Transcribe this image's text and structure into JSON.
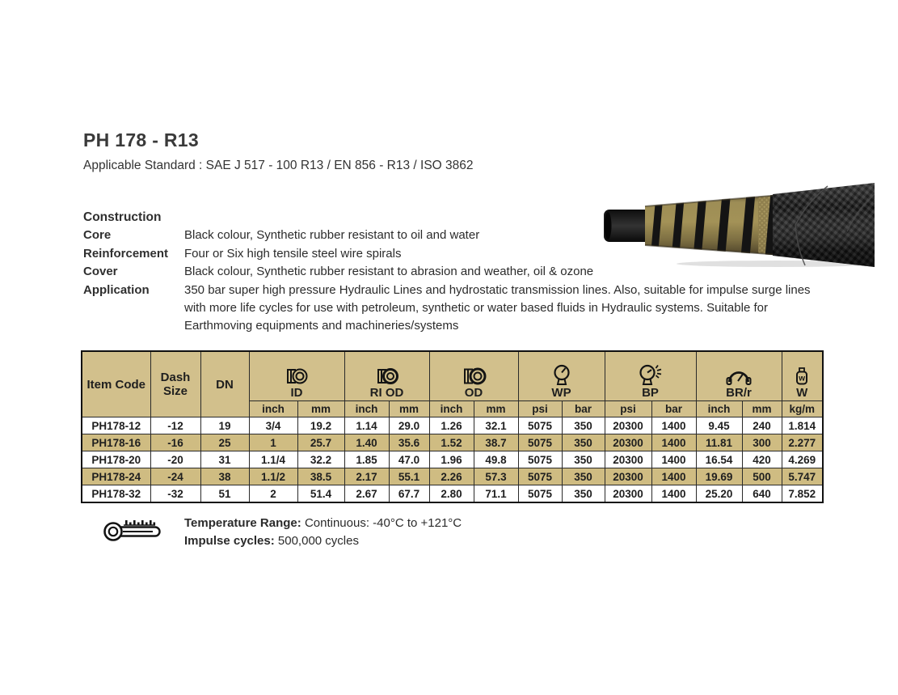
{
  "colors": {
    "header_tan": "#d2c08c",
    "row_alt_tan": "#cfbc82",
    "text_dark": "#2f2f2f",
    "hose_tan": "#978852",
    "hose_black": "#1b1b1b"
  },
  "page": {
    "title": "PH 178 - R13",
    "subtitle": "Applicable Standard : SAE J 517 - 100 R13 / EN 856 - R13 / ISO 3862"
  },
  "construction": {
    "heading": "Construction",
    "rows": [
      {
        "label": "Core",
        "value": "Black colour, Synthetic rubber resistant to oil and water"
      },
      {
        "label": "Reinforcement",
        "value": "Four or Six high tensile steel wire spirals"
      },
      {
        "label": "Cover",
        "value": "Black colour, Synthetic rubber resistant to abrasion and weather, oil & ozone"
      },
      {
        "label": "Application",
        "value": "350 bar super high pressure Hydraulic Lines and hydrostatic transmission lines. Also, suitable for impulse surge lines with more life cycles for use with petroleum, synthetic or water based fluids in Hydraulic systems. Suitable for Earthmoving equipments and machineries/systems"
      }
    ]
  },
  "table": {
    "simple_headers": [
      "Item Code",
      "Dash Size",
      "DN"
    ],
    "groups": [
      {
        "label": "ID",
        "icon": "hose-id-icon",
        "units": [
          "inch",
          "mm"
        ]
      },
      {
        "label": "RI OD",
        "icon": "hose-ri-od-icon",
        "units": [
          "inch",
          "mm"
        ]
      },
      {
        "label": "OD",
        "icon": "hose-od-icon",
        "units": [
          "inch",
          "mm"
        ]
      },
      {
        "label": "WP",
        "icon": "pressure-gauge-icon",
        "units": [
          "psi",
          "bar"
        ]
      },
      {
        "label": "BP",
        "icon": "burst-gauge-icon",
        "units": [
          "psi",
          "bar"
        ]
      },
      {
        "label": "BR/r",
        "icon": "bend-radius-icon",
        "units": [
          "inch",
          "mm"
        ]
      },
      {
        "label": "W",
        "icon": "weight-icon",
        "units": [
          "kg/m"
        ]
      }
    ],
    "weight_icon_letter": "w",
    "rows": [
      [
        "PH178-12",
        "-12",
        "19",
        "3/4",
        "19.2",
        "1.14",
        "29.0",
        "1.26",
        "32.1",
        "5075",
        "350",
        "20300",
        "1400",
        "9.45",
        "240",
        "1.814"
      ],
      [
        "PH178-16",
        "-16",
        "25",
        "1",
        "25.7",
        "1.40",
        "35.6",
        "1.52",
        "38.7",
        "5075",
        "350",
        "20300",
        "1400",
        "11.81",
        "300",
        "2.277"
      ],
      [
        "PH178-20",
        "-20",
        "31",
        "1.1/4",
        "32.2",
        "1.85",
        "47.0",
        "1.96",
        "49.8",
        "5075",
        "350",
        "20300",
        "1400",
        "16.54",
        "420",
        "4.269"
      ],
      [
        "PH178-24",
        "-24",
        "38",
        "1.1/2",
        "38.5",
        "2.17",
        "55.1",
        "2.26",
        "57.3",
        "5075",
        "350",
        "20300",
        "1400",
        "19.69",
        "500",
        "5.747"
      ],
      [
        "PH178-32",
        "-32",
        "51",
        "2",
        "51.4",
        "2.67",
        "67.7",
        "2.80",
        "71.1",
        "5075",
        "350",
        "20300",
        "1400",
        "25.20",
        "640",
        "7.852"
      ]
    ]
  },
  "footer": {
    "temperature_label": "Temperature Range:",
    "temperature_value": "Continuous: -40°C to +121°C",
    "impulse_label": "Impulse cycles:",
    "impulse_value": "500,000 cycles"
  }
}
